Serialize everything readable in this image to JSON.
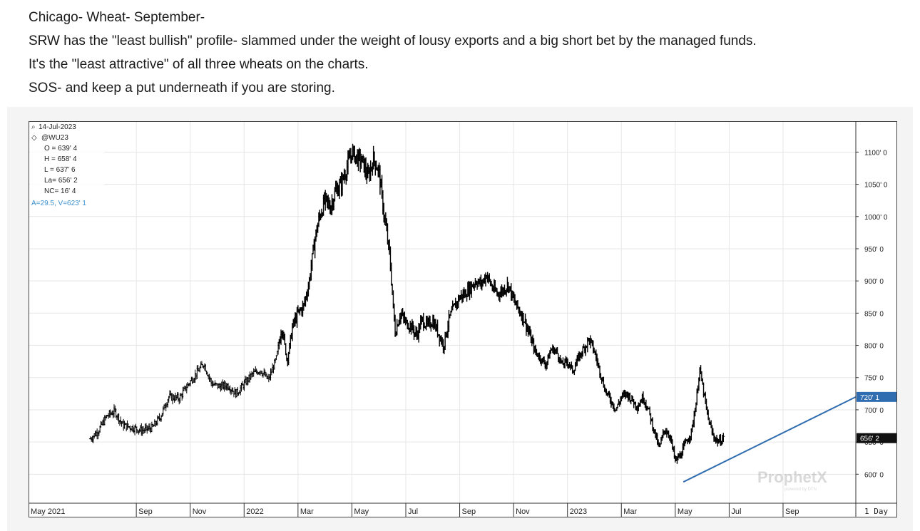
{
  "post": {
    "lines": [
      "Chicago- Wheat- September-",
      "SRW has the \"least bullish\" profile- slammed under the weight of lousy exports and a big short bet by the managed funds.",
      "It's the \"least attractive\" of all three wheats on the charts.",
      "SOS- and keep a put underneath if you are storing."
    ]
  },
  "chart_data": {
    "type": "bar",
    "subtype": "ohlc-price-chart",
    "symbol": "@WU23",
    "date": "14-Jul-2023",
    "readout": {
      "open": "O = 639' 4",
      "high": "H = 658' 4",
      "low": "L = 637' 6",
      "last": "La= 656' 2",
      "net_change": "NC= 16' 4",
      "extra": "A=29.5, V=623' 1"
    },
    "y_axis": {
      "ticks": [
        600,
        650,
        700,
        750,
        800,
        850,
        900,
        950,
        1000,
        1050,
        1100
      ],
      "tick_labels": [
        "600' 0",
        "650' 0",
        "700' 0",
        "750' 0",
        "800' 0",
        "850' 0",
        "900' 0",
        "950' 0",
        "1000' 0",
        "1050' 0",
        "1100' 0"
      ],
      "range": [
        555,
        1148
      ]
    },
    "x_axis": {
      "labels": [
        "May 2021",
        "Sep",
        "Nov",
        "2022",
        "Mar",
        "May",
        "Jul",
        "Sep",
        "Nov",
        "2023",
        "Mar",
        "May",
        "Jul",
        "Sep"
      ],
      "range_months": [
        0,
        30.7
      ],
      "label_months": [
        0,
        4,
        6,
        8,
        10,
        12,
        14,
        16,
        18,
        20,
        22,
        24,
        26,
        28
      ],
      "interval_label": "1 Day"
    },
    "series": [
      {
        "name": "@WU23 close (approx)",
        "points": [
          [
            2.3,
            655
          ],
          [
            2.6,
            668
          ],
          [
            2.9,
            690
          ],
          [
            3.2,
            698
          ],
          [
            3.5,
            676
          ],
          [
            3.9,
            672
          ],
          [
            4.2,
            668
          ],
          [
            4.6,
            672
          ],
          [
            4.9,
            690
          ],
          [
            5.2,
            720
          ],
          [
            5.6,
            718
          ],
          [
            5.9,
            738
          ],
          [
            6.2,
            755
          ],
          [
            6.5,
            772
          ],
          [
            6.8,
            740
          ],
          [
            7.1,
            736
          ],
          [
            7.4,
            738
          ],
          [
            7.7,
            725
          ],
          [
            8.0,
            740
          ],
          [
            8.3,
            755
          ],
          [
            8.6,
            762
          ],
          [
            8.9,
            746
          ],
          [
            9.2,
            780
          ],
          [
            9.4,
            830
          ],
          [
            9.6,
            775
          ],
          [
            9.8,
            830
          ],
          [
            10.0,
            850
          ],
          [
            10.2,
            860
          ],
          [
            10.4,
            895
          ],
          [
            10.6,
            960
          ],
          [
            10.8,
            1000
          ],
          [
            11.0,
            1025
          ],
          [
            11.2,
            1015
          ],
          [
            11.4,
            1040
          ],
          [
            11.6,
            1050
          ],
          [
            11.8,
            1075
          ],
          [
            12.0,
            1100
          ],
          [
            12.2,
            1090
          ],
          [
            12.4,
            1085
          ],
          [
            12.6,
            1060
          ],
          [
            12.8,
            1090
          ],
          [
            13.0,
            1070
          ],
          [
            13.2,
            1000
          ],
          [
            13.4,
            940
          ],
          [
            13.6,
            820
          ],
          [
            13.8,
            850
          ],
          [
            14.0,
            835
          ],
          [
            14.2,
            830
          ],
          [
            14.4,
            815
          ],
          [
            14.6,
            840
          ],
          [
            14.8,
            830
          ],
          [
            15.0,
            838
          ],
          [
            15.2,
            820
          ],
          [
            15.4,
            800
          ],
          [
            15.6,
            840
          ],
          [
            15.8,
            860
          ],
          [
            16.0,
            875
          ],
          [
            16.2,
            880
          ],
          [
            16.4,
            890
          ],
          [
            16.6,
            900
          ],
          [
            16.8,
            895
          ],
          [
            17.0,
            910
          ],
          [
            17.2,
            890
          ],
          [
            17.4,
            880
          ],
          [
            17.6,
            885
          ],
          [
            17.8,
            895
          ],
          [
            18.0,
            870
          ],
          [
            18.2,
            855
          ],
          [
            18.4,
            840
          ],
          [
            18.6,
            815
          ],
          [
            18.8,
            790
          ],
          [
            19.0,
            780
          ],
          [
            19.2,
            770
          ],
          [
            19.4,
            795
          ],
          [
            19.6,
            790
          ],
          [
            19.8,
            770
          ],
          [
            20.0,
            775
          ],
          [
            20.2,
            760
          ],
          [
            20.4,
            780
          ],
          [
            20.6,
            795
          ],
          [
            20.8,
            810
          ],
          [
            21.0,
            790
          ],
          [
            21.2,
            760
          ],
          [
            21.4,
            730
          ],
          [
            21.6,
            715
          ],
          [
            21.8,
            700
          ],
          [
            22.0,
            720
          ],
          [
            22.2,
            725
          ],
          [
            22.4,
            715
          ],
          [
            22.6,
            705
          ],
          [
            22.8,
            720
          ],
          [
            23.0,
            700
          ],
          [
            23.2,
            670
          ],
          [
            23.4,
            640
          ],
          [
            23.6,
            670
          ],
          [
            23.8,
            660
          ],
          [
            24.0,
            620
          ],
          [
            24.2,
            630
          ],
          [
            24.4,
            650
          ],
          [
            24.6,
            665
          ],
          [
            24.8,
            720
          ],
          [
            24.9,
            765
          ],
          [
            25.0,
            740
          ],
          [
            25.2,
            690
          ],
          [
            25.4,
            660
          ],
          [
            25.6,
            650
          ],
          [
            25.8,
            656
          ]
        ]
      }
    ],
    "trendline": {
      "from": [
        24.3,
        588
      ],
      "to": [
        30.7,
        720
      ],
      "color": "#2f6db0"
    },
    "price_tags": [
      {
        "label": "720' 1",
        "value": 720,
        "color": "#2f6db0"
      },
      {
        "label": "656' 2",
        "value": 656,
        "color": "#111111"
      }
    ],
    "watermark": {
      "text": "ProphetX",
      "sub": "powered by DTN"
    },
    "gridlines": true
  }
}
